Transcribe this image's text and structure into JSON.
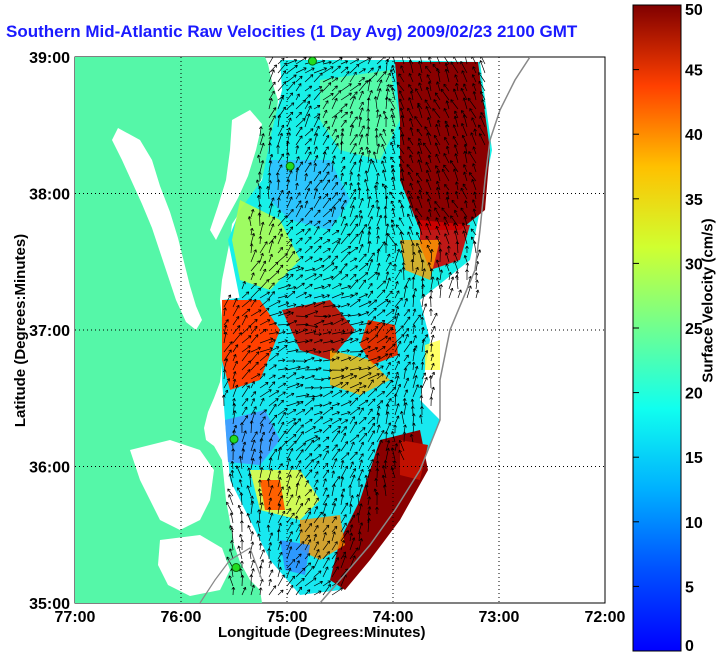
{
  "title": "Southern Mid-Atlantic Raw Velocities (1 Day Avg) 2009/02/23 2100 GMT",
  "x_axis": {
    "label": "Longitude (Degrees:Minutes)",
    "ticks": [
      "77:00",
      "76:00",
      "75:00",
      "74:00",
      "73:00",
      "72:00"
    ],
    "range": [
      -77,
      -72
    ]
  },
  "y_axis": {
    "label": "Latitude (Degrees:Minutes)",
    "ticks": [
      "35:00",
      "36:00",
      "37:00",
      "38:00",
      "39:00"
    ],
    "range": [
      35,
      39
    ]
  },
  "colorbar": {
    "label": "Surface Velocity (cm/s)",
    "ticks": [
      "0",
      "5",
      "10",
      "15",
      "20",
      "25",
      "30",
      "35",
      "40",
      "45",
      "50"
    ],
    "range": [
      0,
      50
    ],
    "colormap": "jet"
  },
  "colors": {
    "land": "#55f7a8",
    "title": "#1a1aff",
    "station": "#22dd22"
  },
  "stations": [
    {
      "lon": -74.76,
      "lat": 38.97
    },
    {
      "lon": -74.97,
      "lat": 38.2
    },
    {
      "lon": -75.5,
      "lat": 36.2
    },
    {
      "lon": -75.48,
      "lat": 35.26
    }
  ]
}
